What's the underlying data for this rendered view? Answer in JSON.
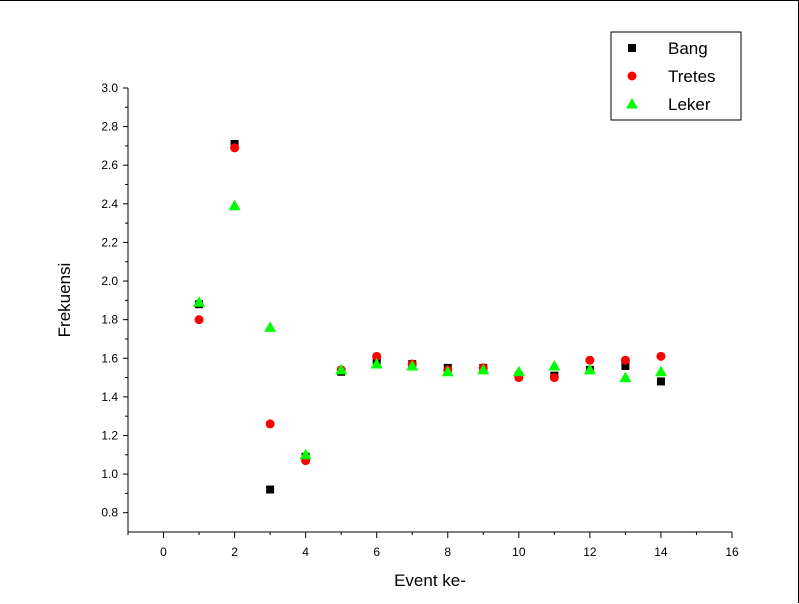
{
  "chart_data": {
    "type": "scatter",
    "xlabel": "Event ke-",
    "ylabel": "Frekuensi",
    "xlim": [
      -1,
      16
    ],
    "ylim": [
      0.7,
      3.0
    ],
    "xticks": [
      0,
      2,
      4,
      6,
      8,
      10,
      12,
      14,
      16
    ],
    "yticks": [
      0.8,
      1.0,
      1.2,
      1.4,
      1.6,
      1.8,
      2.0,
      2.2,
      2.4,
      2.6,
      2.8,
      3.0
    ],
    "xtick_labels": [
      "0",
      "2",
      "4",
      "6",
      "8",
      "10",
      "12",
      "14",
      "16"
    ],
    "ytick_labels": [
      "0.8",
      "1.0",
      "1.2",
      "1.4",
      "1.6",
      "1.8",
      "2.0",
      "2.2",
      "2.4",
      "2.6",
      "2.8",
      "3.0"
    ],
    "grid": false,
    "legend_position": "top-right",
    "series": [
      {
        "name": "Bang",
        "marker": "square",
        "color": "#000000",
        "x": [
          1,
          2,
          3,
          4,
          5,
          6,
          7,
          8,
          9,
          10,
          11,
          12,
          13,
          14
        ],
        "y": [
          1.88,
          2.71,
          0.92,
          1.09,
          1.53,
          1.59,
          1.57,
          1.55,
          1.55,
          1.51,
          1.51,
          1.54,
          1.56,
          1.48
        ]
      },
      {
        "name": "Tretes",
        "marker": "circle",
        "color": "#ff0000",
        "x": [
          1,
          2,
          3,
          4,
          5,
          6,
          7,
          8,
          9,
          10,
          11,
          12,
          13,
          14
        ],
        "y": [
          1.8,
          2.69,
          1.26,
          1.07,
          1.54,
          1.61,
          1.57,
          1.54,
          1.55,
          1.5,
          1.5,
          1.59,
          1.59,
          1.61
        ]
      },
      {
        "name": "Leker",
        "marker": "triangle",
        "color": "#00ff00",
        "x": [
          1,
          2,
          3,
          4,
          5,
          6,
          7,
          8,
          9,
          10,
          11,
          12,
          13,
          14
        ],
        "y": [
          1.89,
          2.39,
          1.76,
          1.1,
          1.54,
          1.57,
          1.56,
          1.53,
          1.54,
          1.53,
          1.56,
          1.54,
          1.5,
          1.53
        ]
      }
    ]
  }
}
